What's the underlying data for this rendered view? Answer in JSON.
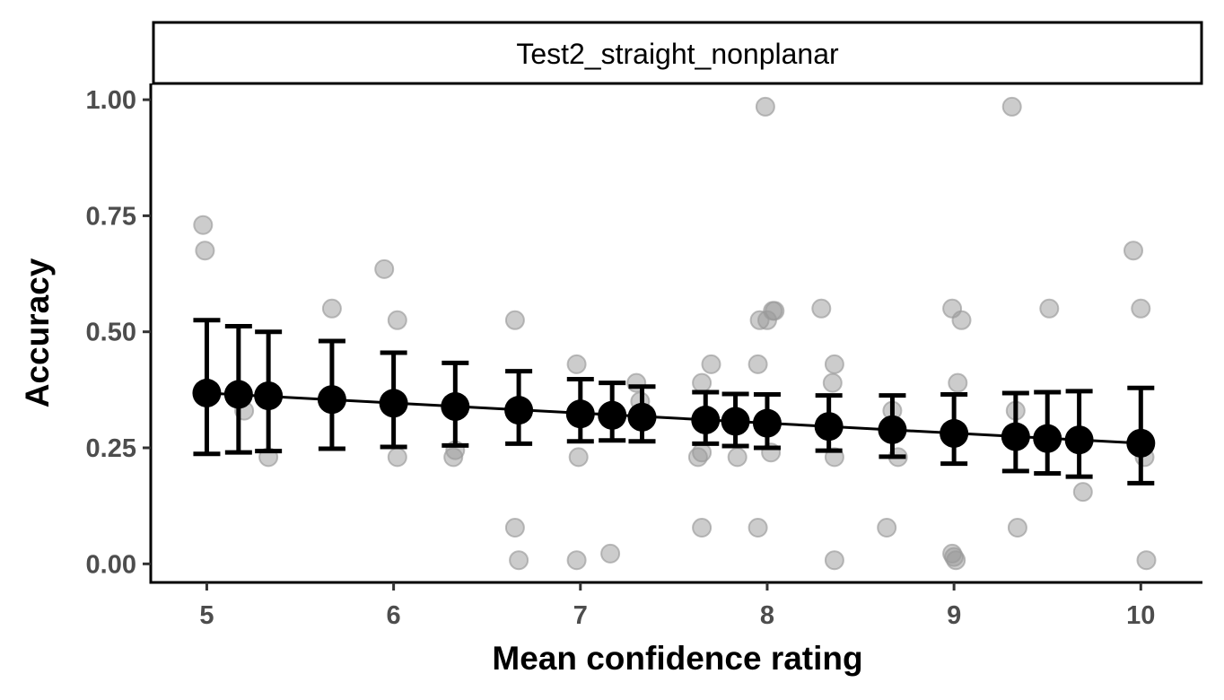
{
  "chart_data": {
    "type": "scatter",
    "facet_label": "Test2_straight_nonplanar",
    "xlabel": "Mean confidence rating",
    "ylabel": "Accuracy",
    "xlim": [
      4.7,
      10.33
    ],
    "ylim": [
      -0.04,
      1.035
    ],
    "x_ticks": [
      5,
      6,
      7,
      8,
      9,
      10
    ],
    "y_ticks": [
      0.0,
      0.25,
      0.5,
      0.75,
      1.0
    ],
    "y_tick_labels": [
      "0.00",
      "0.25",
      "0.50",
      "0.75",
      "1.00"
    ],
    "x_tick_labels": [
      "5",
      "6",
      "7",
      "8",
      "9",
      "10"
    ],
    "grid": false,
    "colors": {
      "raw_points": "#999999",
      "summary": "#000000",
      "axis_text": "#4d4d4d"
    },
    "raw_points": [
      [
        4.98,
        0.73
      ],
      [
        4.99,
        0.675
      ],
      [
        5.2,
        0.33
      ],
      [
        5.33,
        0.23
      ],
      [
        5.67,
        0.55
      ],
      [
        5.95,
        0.635
      ],
      [
        6.02,
        0.525
      ],
      [
        6.02,
        0.23
      ],
      [
        6.32,
        0.23
      ],
      [
        6.33,
        0.245
      ],
      [
        6.65,
        0.525
      ],
      [
        6.65,
        0.078
      ],
      [
        6.67,
        0.008
      ],
      [
        6.98,
        0.43
      ],
      [
        6.99,
        0.23
      ],
      [
        6.98,
        0.008
      ],
      [
        7.16,
        0.022
      ],
      [
        7.3,
        0.39
      ],
      [
        7.32,
        0.35
      ],
      [
        7.63,
        0.23
      ],
      [
        7.65,
        0.24
      ],
      [
        7.65,
        0.39
      ],
      [
        7.65,
        0.078
      ],
      [
        7.7,
        0.43
      ],
      [
        7.84,
        0.23
      ],
      [
        7.95,
        0.43
      ],
      [
        7.95,
        0.078
      ],
      [
        7.96,
        0.525
      ],
      [
        7.99,
        0.985
      ],
      [
        8.0,
        0.525
      ],
      [
        8.02,
        0.24
      ],
      [
        8.03,
        0.545
      ],
      [
        8.04,
        0.545
      ],
      [
        8.29,
        0.55
      ],
      [
        8.35,
        0.39
      ],
      [
        8.36,
        0.43
      ],
      [
        8.36,
        0.23
      ],
      [
        8.36,
        0.008
      ],
      [
        8.64,
        0.078
      ],
      [
        8.67,
        0.33
      ],
      [
        8.7,
        0.23
      ],
      [
        8.99,
        0.55
      ],
      [
        8.99,
        0.022
      ],
      [
        9.0,
        0.015
      ],
      [
        9.01,
        0.008
      ],
      [
        9.02,
        0.39
      ],
      [
        9.04,
        0.525
      ],
      [
        9.31,
        0.985
      ],
      [
        9.33,
        0.33
      ],
      [
        9.34,
        0.078
      ],
      [
        9.51,
        0.55
      ],
      [
        9.69,
        0.155
      ],
      [
        9.96,
        0.675
      ],
      [
        10.0,
        0.55
      ],
      [
        10.02,
        0.23
      ],
      [
        10.03,
        0.008
      ]
    ],
    "summary": {
      "x": [
        5.0,
        5.17,
        5.33,
        5.67,
        6.0,
        6.33,
        6.67,
        7.0,
        7.17,
        7.33,
        7.67,
        7.83,
        8.0,
        8.33,
        8.67,
        9.0,
        9.33,
        9.5,
        9.67,
        10.0
      ],
      "mean": [
        0.368,
        0.365,
        0.362,
        0.354,
        0.346,
        0.339,
        0.331,
        0.323,
        0.32,
        0.316,
        0.31,
        0.307,
        0.303,
        0.296,
        0.289,
        0.281,
        0.274,
        0.27,
        0.267,
        0.26
      ],
      "lower": [
        0.237,
        0.24,
        0.243,
        0.248,
        0.252,
        0.255,
        0.259,
        0.264,
        0.266,
        0.264,
        0.259,
        0.254,
        0.25,
        0.244,
        0.231,
        0.216,
        0.2,
        0.195,
        0.188,
        0.174
      ],
      "upper": [
        0.525,
        0.512,
        0.5,
        0.48,
        0.455,
        0.433,
        0.415,
        0.398,
        0.39,
        0.382,
        0.37,
        0.366,
        0.365,
        0.363,
        0.363,
        0.365,
        0.368,
        0.37,
        0.372,
        0.379
      ]
    },
    "trend_line": {
      "x": [
        5.0,
        10.0
      ],
      "y": [
        0.368,
        0.26
      ]
    }
  }
}
